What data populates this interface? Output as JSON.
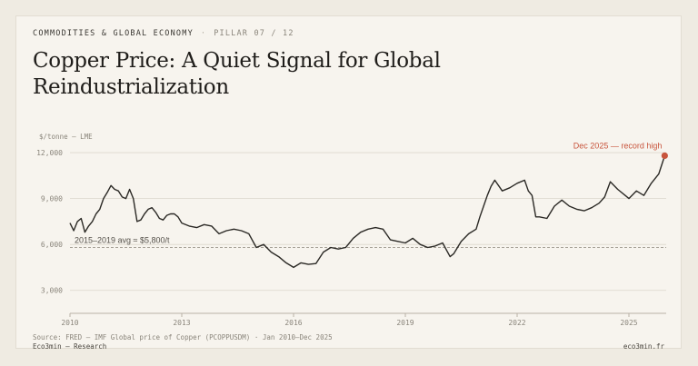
{
  "header": {
    "kicker": "COMMODITIES & GLOBAL ECONOMY",
    "separator": "·",
    "pillar": "PILLAR 07 / 12",
    "title": "Copper Price: A Quiet Signal for Global Reindustrialization"
  },
  "footer": {
    "source": "Source: FRED — IMF Global price of Copper (PCOPPUSDM) · Jan 2010–Dec 2025",
    "brand": "Eco3min — Research",
    "site": "eco3min.fr"
  },
  "colors": {
    "line": "#2b2925",
    "highlight": "#c8553d",
    "grid": "#dcd7cc",
    "reference": "#9a958b"
  },
  "chart_data": {
    "type": "line",
    "title": "Copper Price: A Quiet Signal for Global Reindustrialization",
    "ylabel": "$/tonne — LME",
    "xlabel": "",
    "ylim": [
      1500,
      12300
    ],
    "xlim": [
      2010.0,
      2026.0
    ],
    "yticks": [
      3000,
      6000,
      9000,
      12000
    ],
    "ytick_labels": [
      "3,000",
      "6,000",
      "9,000",
      "12,000"
    ],
    "xticks": [
      2010,
      2013,
      2016,
      2019,
      2022,
      2025
    ],
    "xtick_labels": [
      "2010",
      "2013",
      "2016",
      "2019",
      "2022",
      "2025"
    ],
    "grid": "horizontal",
    "reference_line": {
      "value": 5800,
      "label": "2015–2019 avg ≈ $5,800/t"
    },
    "annotation": {
      "label": "Dec 2025 — record high",
      "x": 2025.96,
      "y": 11800
    },
    "series": [
      {
        "x": [
          2010.0,
          2010.1,
          2010.2,
          2010.3,
          2010.4,
          2010.5,
          2010.6,
          2010.7,
          2010.8,
          2010.9,
          2011.0,
          2011.1,
          2011.2,
          2011.3,
          2011.4,
          2011.5,
          2011.6,
          2011.7,
          2011.8,
          2011.9,
          2012.0,
          2012.1,
          2012.2,
          2012.3,
          2012.4,
          2012.5,
          2012.6,
          2012.7,
          2012.8,
          2012.9,
          2013.0,
          2013.2,
          2013.4,
          2013.6,
          2013.8,
          2014.0,
          2014.2,
          2014.4,
          2014.6,
          2014.8,
          2015.0,
          2015.2,
          2015.4,
          2015.6,
          2015.8,
          2016.0,
          2016.2,
          2016.4,
          2016.6,
          2016.8,
          2017.0,
          2017.2,
          2017.4,
          2017.6,
          2017.8,
          2018.0,
          2018.2,
          2018.4,
          2018.6,
          2018.8,
          2019.0,
          2019.2,
          2019.4,
          2019.6,
          2019.8,
          2020.0,
          2020.2,
          2020.3,
          2020.5,
          2020.7,
          2020.9,
          2021.0,
          2021.1,
          2021.2,
          2021.3,
          2021.4,
          2021.6,
          2021.8,
          2022.0,
          2022.2,
          2022.3,
          2022.4,
          2022.5,
          2022.6,
          2022.8,
          2023.0,
          2023.2,
          2023.4,
          2023.6,
          2023.8,
          2024.0,
          2024.2,
          2024.35,
          2024.5,
          2024.7,
          2024.9,
          2025.0,
          2025.2,
          2025.4,
          2025.6,
          2025.8,
          2025.96
        ],
        "y": [
          7400,
          6900,
          7500,
          7700,
          6800,
          7200,
          7500,
          8000,
          8300,
          9000,
          9400,
          9850,
          9600,
          9500,
          9100,
          9000,
          9600,
          9000,
          7500,
          7600,
          8000,
          8300,
          8400,
          8100,
          7700,
          7600,
          7900,
          8000,
          8000,
          7800,
          7400,
          7200,
          7100,
          7300,
          7200,
          6700,
          6900,
          7000,
          6900,
          6700,
          5800,
          6000,
          5500,
          5200,
          4800,
          4500,
          4800,
          4700,
          4750,
          5500,
          5800,
          5700,
          5800,
          6400,
          6800,
          7000,
          7100,
          7000,
          6300,
          6200,
          6100,
          6400,
          6000,
          5800,
          5900,
          6100,
          5200,
          5400,
          6200,
          6700,
          7000,
          7800,
          8500,
          9200,
          9800,
          10200,
          9500,
          9700,
          10000,
          10200,
          9500,
          9200,
          7800,
          7800,
          7700,
          8500,
          8900,
          8500,
          8300,
          8200,
          8400,
          8700,
          9100,
          10100,
          9600,
          9200,
          9000,
          9500,
          9200,
          10000,
          10600,
          11800
        ]
      }
    ]
  }
}
